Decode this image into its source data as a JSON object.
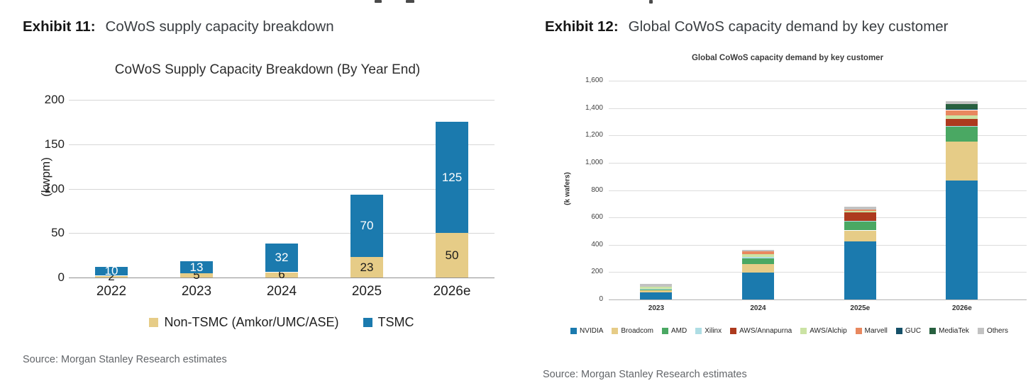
{
  "exhibits": [
    {
      "label": "Exhibit 11:",
      "title": "CoWoS supply capacity breakdown",
      "source": "Source: Morgan Stanley Research estimates"
    },
    {
      "label": "Exhibit 12:",
      "title": "Global CoWoS capacity demand by key customer",
      "source": "Source: Morgan Stanley Research estimates"
    }
  ],
  "chart_data": [
    {
      "type": "bar",
      "stacked": true,
      "title": "CoWoS Supply Capacity Breakdown (By Year End)",
      "ylabel": "(kwpm)",
      "ylim": [
        0,
        200
      ],
      "yticks": [
        0,
        50,
        100,
        150,
        200
      ],
      "categories": [
        "2022",
        "2023",
        "2024",
        "2025",
        "2026e"
      ],
      "series": [
        {
          "name": "Non-TSMC (Amkor/UMC/ASE)",
          "color": "#e6cc87",
          "label_color": "#1a1a1a",
          "values": [
            2,
            5,
            6,
            23,
            50
          ]
        },
        {
          "name": "TSMC",
          "color": "#1b7aae",
          "label_color": "#ffffff",
          "values": [
            10,
            13,
            32,
            70,
            125
          ]
        }
      ],
      "show_labels": true,
      "legend_position": "bottom",
      "grid": true
    },
    {
      "type": "bar",
      "stacked": true,
      "title": "Global CoWoS capacity demand by key customer",
      "ylabel": "(k wafers)",
      "ylim": [
        0,
        1600
      ],
      "yticks": [
        "0",
        "200",
        "400",
        "600",
        "800",
        "1,000",
        "1,200",
        "1,400",
        "1,600"
      ],
      "categories": [
        "2023",
        "2024",
        "2025e",
        "2026e"
      ],
      "series": [
        {
          "name": "NVIDIA",
          "color": "#1b7aae",
          "values": [
            50,
            195,
            425,
            870
          ]
        },
        {
          "name": "Broadcom",
          "color": "#e6cc87",
          "values": [
            20,
            65,
            80,
            285
          ]
        },
        {
          "name": "AMD",
          "color": "#4aa863",
          "values": [
            5,
            40,
            65,
            110
          ]
        },
        {
          "name": "Xilinx",
          "color": "#aedde4",
          "values": [
            5,
            10,
            5,
            5
          ]
        },
        {
          "name": "AWS/Annapurna",
          "color": "#ad3a1e",
          "values": [
            0,
            0,
            60,
            50
          ]
        },
        {
          "name": "AWS/Alchip",
          "color": "#cbe3a4",
          "values": [
            15,
            20,
            10,
            25
          ]
        },
        {
          "name": "Marvell",
          "color": "#e8885f",
          "values": [
            0,
            20,
            15,
            40
          ]
        },
        {
          "name": "GUC",
          "color": "#155068",
          "values": [
            0,
            0,
            0,
            10
          ]
        },
        {
          "name": "MediaTek",
          "color": "#27603f",
          "values": [
            0,
            0,
            0,
            35
          ]
        },
        {
          "name": "Others",
          "color": "#c2c2c2",
          "values": [
            20,
            15,
            20,
            20
          ]
        }
      ],
      "show_labels": false,
      "legend_position": "bottom",
      "grid": true
    }
  ]
}
